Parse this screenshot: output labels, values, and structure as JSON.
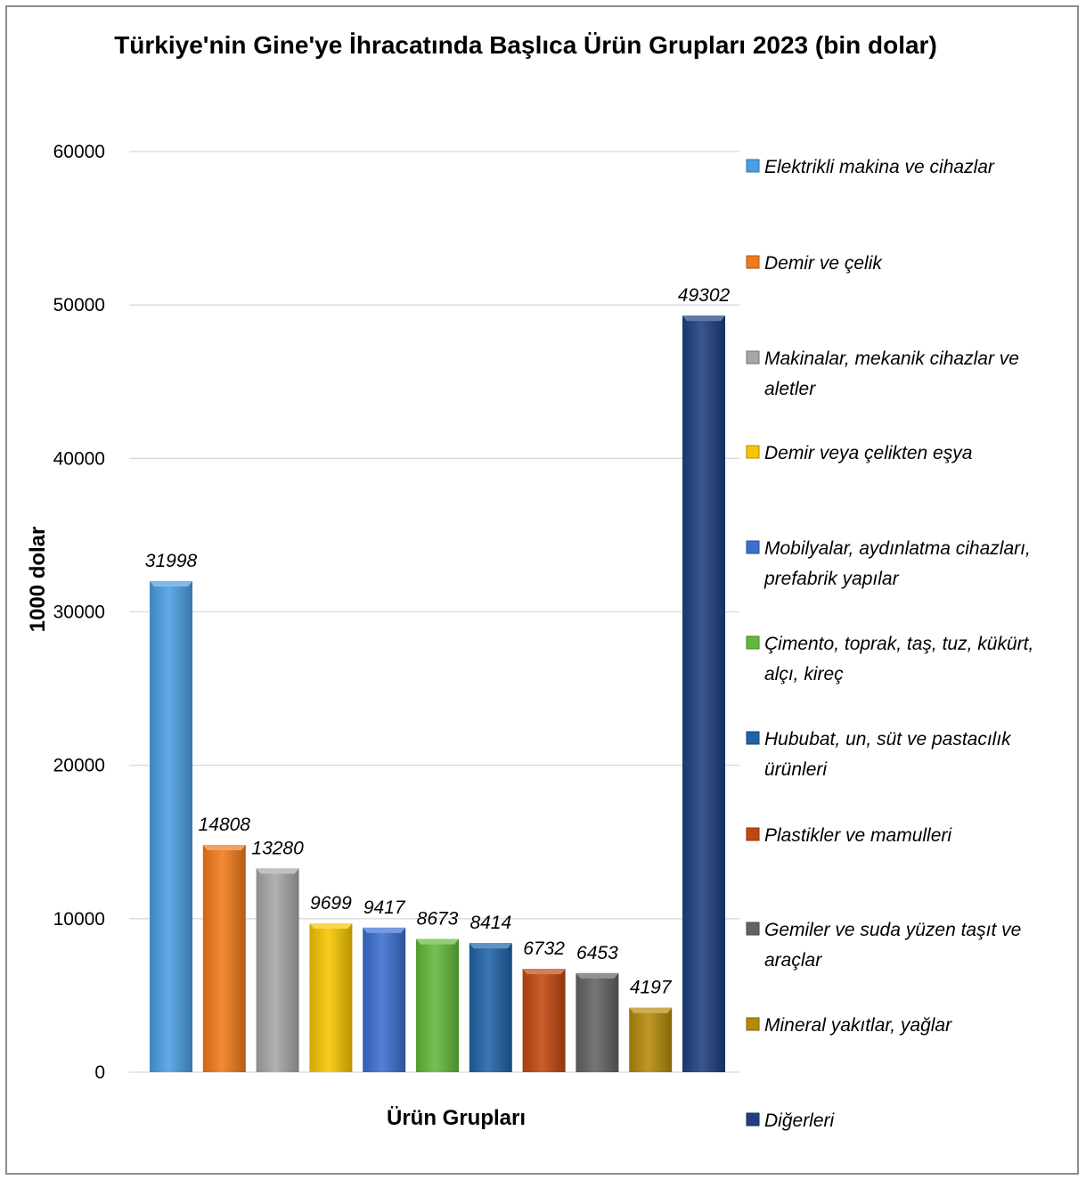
{
  "chart_data": {
    "type": "bar",
    "title": "Türkiye'nin Gine'ye İhracatında Başlıca Ürün Grupları 2023 (bin dolar)",
    "xlabel": "Ürün Grupları",
    "ylabel": "1000 dolar",
    "ylim": [
      0,
      60000
    ],
    "yticks": [
      0,
      10000,
      20000,
      30000,
      40000,
      50000,
      60000
    ],
    "grid": true,
    "legend_position": "right",
    "series": [
      {
        "name": "Elektrikli makina ve cihazlar",
        "values": [
          31998
        ],
        "color": "#4a9ee3"
      },
      {
        "name": "Demir ve çelik",
        "values": [
          14808
        ],
        "color": "#f07a1c"
      },
      {
        "name": "Makinalar, mekanik cihazlar ve aletler",
        "values": [
          13280
        ],
        "color": "#a6a6a6"
      },
      {
        "name": "Demir veya çelikten eşya",
        "values": [
          9699
        ],
        "color": "#f7c600"
      },
      {
        "name": "Mobilyalar, aydınlatma cihazları, prefabrik yapılar",
        "values": [
          9417
        ],
        "color": "#3b6fd0"
      },
      {
        "name": "Çimento, toprak, taş, tuz, kükürt, alçı, kireç",
        "values": [
          8673
        ],
        "color": "#62b83a"
      },
      {
        "name": "Hububat, un, süt ve pastacılık ürünleri",
        "values": [
          8414
        ],
        "color": "#1f63a8"
      },
      {
        "name": "Plastikler ve mamulleri",
        "values": [
          6732
        ],
        "color": "#c1490e"
      },
      {
        "name": "Gemiler ve suda yüzen taşıt ve araçlar",
        "values": [
          6453
        ],
        "color": "#636363"
      },
      {
        "name": "Mineral yakıtlar, yağlar",
        "values": [
          4197
        ],
        "color": "#b48a09"
      },
      {
        "name": "Diğerleri",
        "values": [
          49302
        ],
        "color": "#1f3f80"
      }
    ]
  }
}
